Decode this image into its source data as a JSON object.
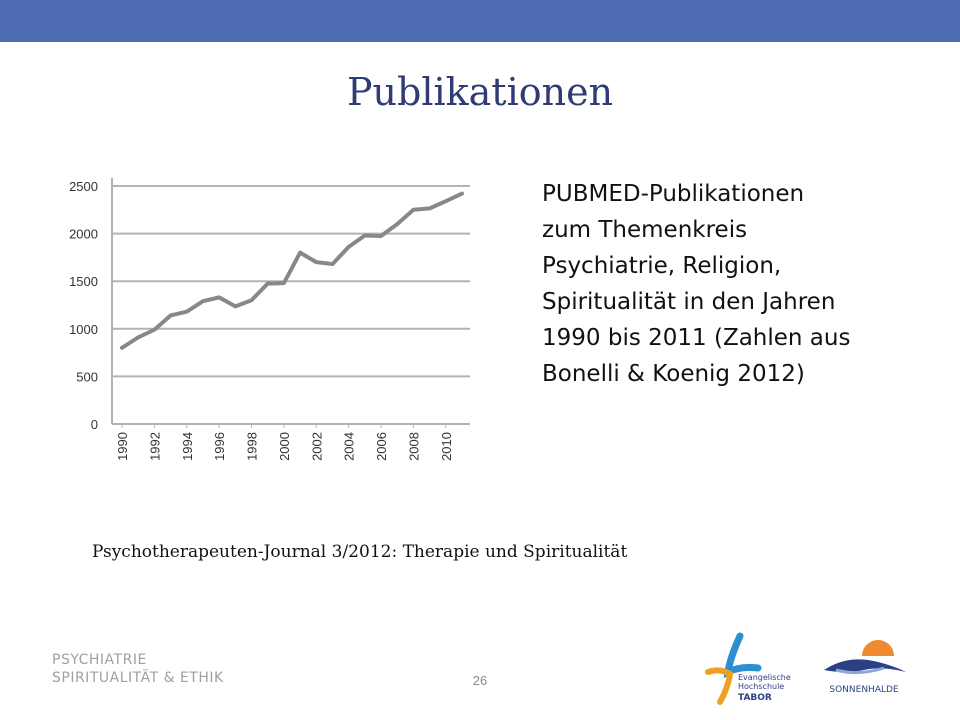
{
  "slide": {
    "title": "Publikationen",
    "description_lines": [
      "PUBMED-Publikationen",
      "zum Themenkreis",
      "Psychiatrie, Religion,",
      "Spiritualität in den Jahren",
      "1990 bis 2011 (Zahlen aus",
      "Bonelli & Koenig 2012)"
    ],
    "source": "Psychotherapeuten-Journal 3/2012: Therapie und Spiritualität",
    "page_number": "26",
    "footer_brand_lines": [
      "PSYCHIATRIE",
      "SPIRITUALITÄT & ETHIK"
    ]
  },
  "logos": {
    "tabor": {
      "lines": [
        "Evangelische",
        "Hochschule",
        "TABOR"
      ],
      "colors": [
        "#2b8fd0",
        "#f0a020"
      ]
    },
    "sonnenhalde": {
      "text": "SONNENHALDE",
      "colors": [
        "#2b3f85",
        "#f08a30"
      ]
    }
  },
  "colors": {
    "top_bar": "#4d6bb3",
    "title": "#2f3b73",
    "line": "#888888",
    "grid": "#b3b3b3"
  },
  "chart_data": {
    "type": "line",
    "title": "",
    "xlabel": "",
    "ylabel": "",
    "x": [
      1990,
      1991,
      1992,
      1993,
      1994,
      1995,
      1996,
      1997,
      1998,
      1999,
      2000,
      2001,
      2002,
      2003,
      2004,
      2005,
      2006,
      2007,
      2008,
      2009,
      2010,
      2011
    ],
    "series": [
      {
        "values": [
          800,
          910,
          990,
          1140,
          1180,
          1290,
          1330,
          1235,
          1300,
          1475,
          1480,
          1800,
          1700,
          1680,
          1860,
          1980,
          1975,
          2100,
          2250,
          2265,
          2340,
          2420
        ]
      }
    ],
    "ylim": [
      0,
      2500
    ],
    "yticks": [
      0,
      500,
      1000,
      1500,
      2000,
      2500
    ],
    "xticks": [
      1990,
      1992,
      1994,
      1996,
      1998,
      2000,
      2002,
      2004,
      2006,
      2008,
      2010
    ],
    "grid": true,
    "legend": "none"
  }
}
